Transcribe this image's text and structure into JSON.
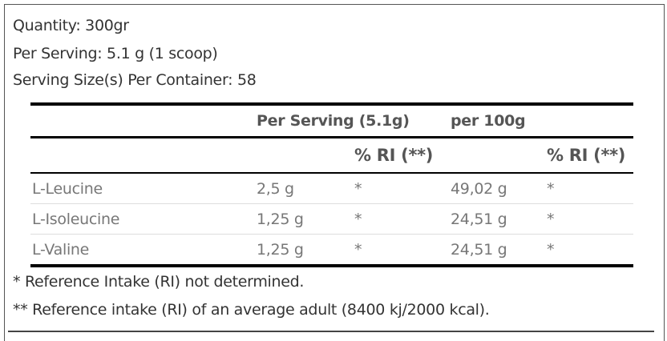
{
  "info": {
    "quantity": "Quantity: 300gr",
    "per_serving": "Per Serving: 5.1 g (1 scoop)",
    "servings": "Serving Size(s) Per Container: 58"
  },
  "table": {
    "header1": [
      "",
      "Per Serving (5.1g)",
      "per 100g",
      ""
    ],
    "header2": [
      "",
      "",
      "% RI (**)",
      "",
      "% RI (**)"
    ],
    "rows": [
      [
        "L-Leucine",
        "2,5 g",
        "*",
        "49,02 g",
        "*"
      ],
      [
        "L-Isoleucine",
        "1,25 g",
        "*",
        "24,51 g",
        "*"
      ],
      [
        "L-Valine",
        "1,25 g",
        "*",
        "24,51 g",
        "*"
      ]
    ]
  },
  "footnotes": [
    "* Reference Intake (RI) not determined.",
    "** Reference intake (RI) of an average adult (8400 kj/2000 kcal)."
  ]
}
